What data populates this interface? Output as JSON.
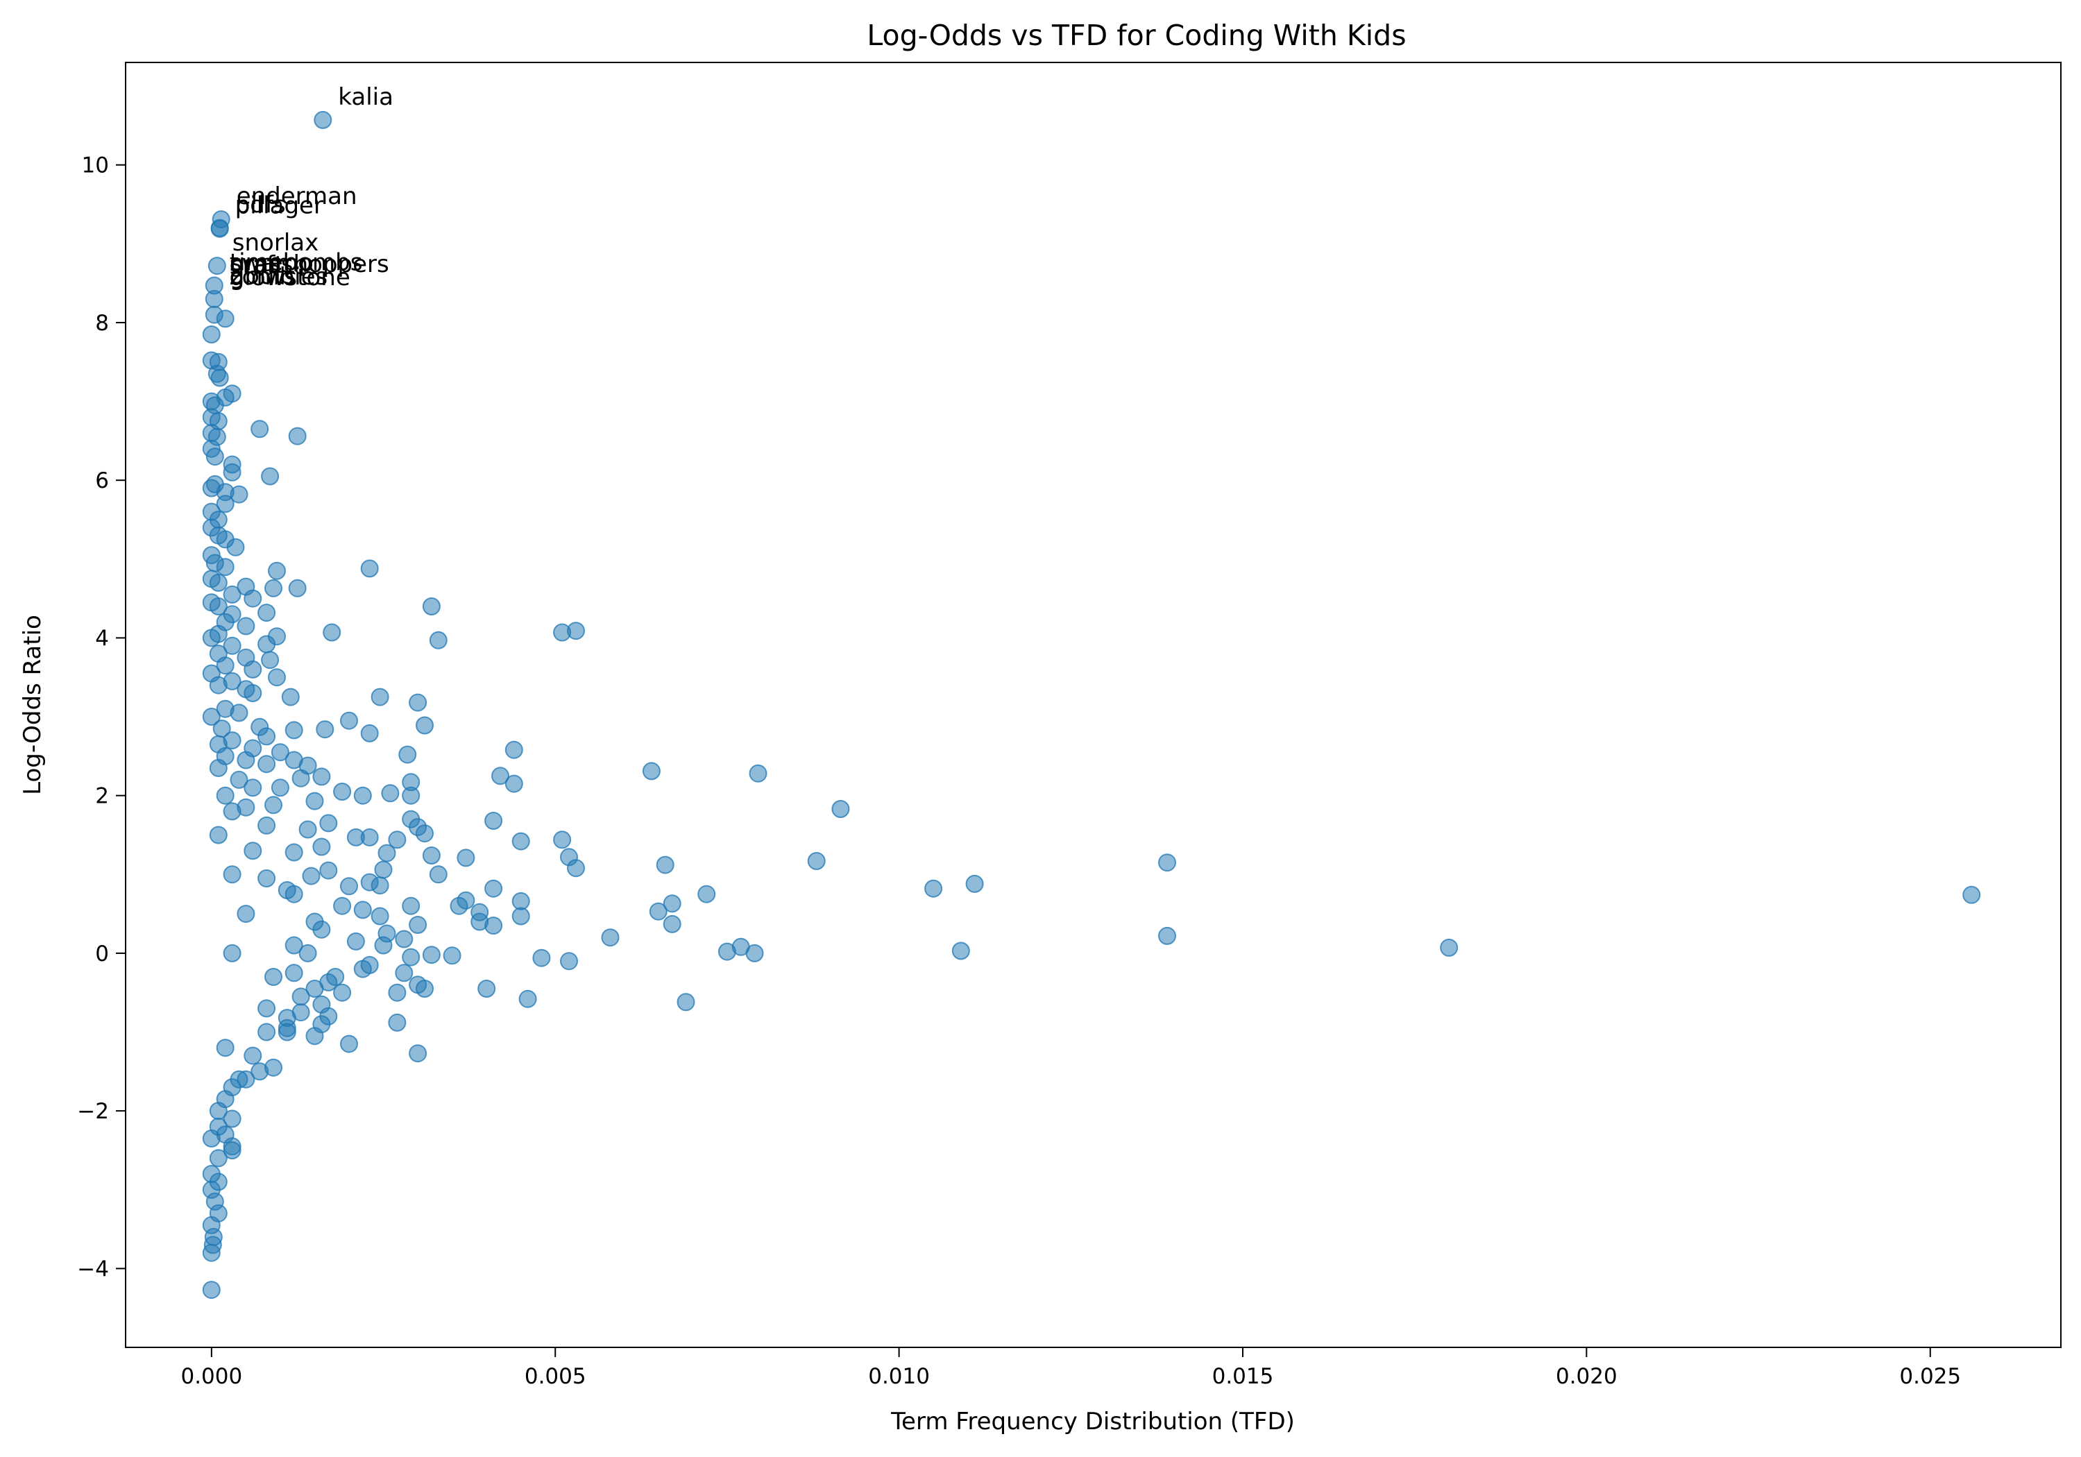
{
  "chart_data": {
    "type": "scatter",
    "title": "Log-Odds vs TFD for Coding With Kids",
    "xlabel": "Term Frequency Distribution (TFD)",
    "ylabel": "Log-Odds Ratio",
    "xlim": [
      -0.00125,
      0.0269
    ],
    "ylim": [
      -5.0,
      11.3
    ],
    "xticks": [
      0.0,
      0.005,
      0.01,
      0.015,
      0.02,
      0.025
    ],
    "xtick_labels": [
      "0.000",
      "0.005",
      "0.010",
      "0.015",
      "0.020",
      "0.025"
    ],
    "yticks": [
      -4,
      -2,
      0,
      2,
      4,
      6,
      8,
      10
    ],
    "ytick_labels": [
      "−4",
      "−2",
      "0",
      "2",
      "4",
      "6",
      "8",
      "10"
    ],
    "grid": false,
    "marker_color": "#1f77b4",
    "marker_alpha": 0.5,
    "annotations": [
      {
        "text": "kalia",
        "x": 0.00162,
        "y": 10.57
      },
      {
        "text": "enderman",
        "x": 0.00014,
        "y": 9.31
      },
      {
        "text": "pdfs",
        "x": 0.00012,
        "y": 9.2
      },
      {
        "text": "pillager",
        "x": 0.00012,
        "y": 9.19
      },
      {
        "text": "snorlax",
        "x": 8e-05,
        "y": 8.72
      },
      {
        "text": "timebombs",
        "x": 4e-05,
        "y": 8.47
      },
      {
        "text": "swamp",
        "x": 4e-05,
        "y": 8.46
      },
      {
        "text": "grasshoppers",
        "x": 4e-05,
        "y": 8.45
      },
      {
        "text": "craft",
        "x": 4e-05,
        "y": 8.44
      },
      {
        "text": "gbuts",
        "x": 4e-05,
        "y": 8.3
      },
      {
        "text": "zombies",
        "x": 4e-05,
        "y": 8.29
      },
      {
        "text": "glowstone",
        "x": 4e-05,
        "y": 8.28
      }
    ],
    "points": [
      [
        0.00162,
        10.57
      ],
      [
        0.00014,
        9.31
      ],
      [
        0.00012,
        9.2
      ],
      [
        0.00012,
        9.19
      ],
      [
        8e-05,
        8.72
      ],
      [
        4e-05,
        8.47
      ],
      [
        4e-05,
        8.3
      ],
      [
        4e-05,
        8.1
      ],
      [
        0.0002,
        8.05
      ],
      [
        0.0,
        7.85
      ],
      [
        0.0,
        7.52
      ],
      [
        0.0001,
        7.5
      ],
      [
        8e-05,
        7.35
      ],
      [
        0.00012,
        7.3
      ],
      [
        0.0003,
        7.1
      ],
      [
        0.0002,
        7.05
      ],
      [
        0.0,
        7.0
      ],
      [
        5e-05,
        6.95
      ],
      [
        0.0,
        6.8
      ],
      [
        0.0001,
        6.75
      ],
      [
        0.0,
        6.6
      ],
      [
        8e-05,
        6.55
      ],
      [
        0.0007,
        6.65
      ],
      [
        0.00125,
        6.56
      ],
      [
        0.0,
        6.4
      ],
      [
        5e-05,
        6.3
      ],
      [
        0.0003,
        6.2
      ],
      [
        0.0003,
        6.1
      ],
      [
        0.00085,
        6.05
      ],
      [
        0.0,
        5.9
      ],
      [
        5e-05,
        5.95
      ],
      [
        0.0002,
        5.85
      ],
      [
        0.0004,
        5.82
      ],
      [
        0.0002,
        5.7
      ],
      [
        0.0,
        5.6
      ],
      [
        0.0001,
        5.5
      ],
      [
        0.0,
        5.4
      ],
      [
        0.0001,
        5.3
      ],
      [
        0.0002,
        5.25
      ],
      [
        0.00035,
        5.15
      ],
      [
        0.0,
        5.05
      ],
      [
        5e-05,
        4.95
      ],
      [
        0.0002,
        4.9
      ],
      [
        0.00095,
        4.85
      ],
      [
        0.0023,
        4.88
      ],
      [
        0.0,
        4.75
      ],
      [
        0.0001,
        4.7
      ],
      [
        0.0005,
        4.65
      ],
      [
        0.0009,
        4.63
      ],
      [
        0.00125,
        4.63
      ],
      [
        0.0003,
        4.55
      ],
      [
        0.0006,
        4.5
      ],
      [
        0.0,
        4.45
      ],
      [
        0.0001,
        4.4
      ],
      [
        0.0032,
        4.4
      ],
      [
        0.0003,
        4.3
      ],
      [
        0.0008,
        4.32
      ],
      [
        0.0002,
        4.2
      ],
      [
        0.0005,
        4.15
      ],
      [
        0.0051,
        4.07
      ],
      [
        0.0053,
        4.09
      ],
      [
        0.00175,
        4.07
      ],
      [
        0.0001,
        4.05
      ],
      [
        0.0,
        4.0
      ],
      [
        0.00095,
        4.02
      ],
      [
        0.0033,
        3.97
      ],
      [
        0.0003,
        3.9
      ],
      [
        0.0008,
        3.92
      ],
      [
        0.0001,
        3.8
      ],
      [
        0.0005,
        3.75
      ],
      [
        0.00085,
        3.72
      ],
      [
        0.0002,
        3.65
      ],
      [
        0.0006,
        3.6
      ],
      [
        0.0,
        3.55
      ],
      [
        0.00095,
        3.5
      ],
      [
        0.0003,
        3.45
      ],
      [
        0.0001,
        3.4
      ],
      [
        0.0005,
        3.35
      ],
      [
        0.0006,
        3.3
      ],
      [
        0.00115,
        3.25
      ],
      [
        0.00245,
        3.25
      ],
      [
        0.003,
        3.18
      ],
      [
        0.0002,
        3.1
      ],
      [
        0.0004,
        3.05
      ],
      [
        0.0,
        3.0
      ],
      [
        0.002,
        2.95
      ],
      [
        0.0031,
        2.89
      ],
      [
        0.0007,
        2.87
      ],
      [
        0.00015,
        2.85
      ],
      [
        0.0012,
        2.83
      ],
      [
        0.00165,
        2.84
      ],
      [
        0.0023,
        2.79
      ],
      [
        0.0008,
        2.75
      ],
      [
        0.0003,
        2.7
      ],
      [
        0.0001,
        2.65
      ],
      [
        0.0044,
        2.58
      ],
      [
        0.0006,
        2.6
      ],
      [
        0.001,
        2.55
      ],
      [
        0.0002,
        2.5
      ],
      [
        0.00285,
        2.52
      ],
      [
        0.0005,
        2.45
      ],
      [
        0.0012,
        2.45
      ],
      [
        0.0008,
        2.4
      ],
      [
        0.0014,
        2.38
      ],
      [
        0.0001,
        2.35
      ],
      [
        0.0064,
        2.31
      ],
      [
        0.00795,
        2.28
      ],
      [
        0.0042,
        2.25
      ],
      [
        0.0016,
        2.24
      ],
      [
        0.0013,
        2.22
      ],
      [
        0.0004,
        2.2
      ],
      [
        0.0029,
        2.17
      ],
      [
        0.0044,
        2.15
      ],
      [
        0.0006,
        2.1
      ],
      [
        0.001,
        2.1
      ],
      [
        0.0019,
        2.05
      ],
      [
        0.0026,
        2.03
      ],
      [
        0.0022,
        2.0
      ],
      [
        0.0002,
        2.0
      ],
      [
        0.0029,
        2.0
      ],
      [
        0.0015,
        1.93
      ],
      [
        0.0009,
        1.88
      ],
      [
        0.0005,
        1.85
      ],
      [
        0.00915,
        1.83
      ],
      [
        0.0003,
        1.8
      ],
      [
        0.0029,
        1.7
      ],
      [
        0.0041,
        1.68
      ],
      [
        0.0017,
        1.65
      ],
      [
        0.0008,
        1.62
      ],
      [
        0.003,
        1.6
      ],
      [
        0.0014,
        1.57
      ],
      [
        0.0031,
        1.52
      ],
      [
        0.0001,
        1.5
      ],
      [
        0.0021,
        1.47
      ],
      [
        0.0023,
        1.47
      ],
      [
        0.0051,
        1.44
      ],
      [
        0.0045,
        1.42
      ],
      [
        0.0027,
        1.44
      ],
      [
        0.0016,
        1.35
      ],
      [
        0.0006,
        1.3
      ],
      [
        0.0012,
        1.28
      ],
      [
        0.00255,
        1.27
      ],
      [
        0.0032,
        1.24
      ],
      [
        0.0052,
        1.22
      ],
      [
        0.0037,
        1.21
      ],
      [
        0.0088,
        1.17
      ],
      [
        0.0139,
        1.15
      ],
      [
        0.0066,
        1.12
      ],
      [
        0.0053,
        1.08
      ],
      [
        0.0017,
        1.05
      ],
      [
        0.0025,
        1.06
      ],
      [
        0.0003,
        1.0
      ],
      [
        0.0033,
        1.0
      ],
      [
        0.00145,
        0.98
      ],
      [
        0.0008,
        0.95
      ],
      [
        0.0023,
        0.9
      ],
      [
        0.0111,
        0.88
      ],
      [
        0.002,
        0.85
      ],
      [
        0.0105,
        0.82
      ],
      [
        0.0041,
        0.82
      ],
      [
        0.00245,
        0.86
      ],
      [
        0.0011,
        0.8
      ],
      [
        0.0072,
        0.75
      ],
      [
        0.0256,
        0.74
      ],
      [
        0.0012,
        0.75
      ],
      [
        0.0037,
        0.67
      ],
      [
        0.0045,
        0.66
      ],
      [
        0.0029,
        0.6
      ],
      [
        0.0067,
        0.63
      ],
      [
        0.0036,
        0.6
      ],
      [
        0.0019,
        0.6
      ],
      [
        0.0065,
        0.53
      ],
      [
        0.0039,
        0.52
      ],
      [
        0.0022,
        0.55
      ],
      [
        0.0045,
        0.47
      ],
      [
        0.00245,
        0.47
      ],
      [
        0.0005,
        0.5
      ],
      [
        0.0015,
        0.4
      ],
      [
        0.0039,
        0.4
      ],
      [
        0.0041,
        0.35
      ],
      [
        0.0067,
        0.37
      ],
      [
        0.003,
        0.36
      ],
      [
        0.0016,
        0.3
      ],
      [
        0.00255,
        0.25
      ],
      [
        0.0139,
        0.22
      ],
      [
        0.0058,
        0.2
      ],
      [
        0.0028,
        0.18
      ],
      [
        0.0021,
        0.15
      ],
      [
        0.0012,
        0.1
      ],
      [
        0.0025,
        0.1
      ],
      [
        0.0077,
        0.08
      ],
      [
        0.018,
        0.07
      ],
      [
        0.0109,
        0.03
      ],
      [
        0.0075,
        0.02
      ],
      [
        0.0079,
        0.0
      ],
      [
        0.0003,
        0.0
      ],
      [
        0.0014,
        0.0
      ],
      [
        0.0032,
        -0.02
      ],
      [
        0.0035,
        -0.03
      ],
      [
        0.0029,
        -0.05
      ],
      [
        0.0048,
        -0.06
      ],
      [
        0.0052,
        -0.1
      ],
      [
        0.0023,
        -0.15
      ],
      [
        0.0022,
        -0.2
      ],
      [
        0.0028,
        -0.25
      ],
      [
        0.0012,
        -0.25
      ],
      [
        0.0018,
        -0.3
      ],
      [
        0.0009,
        -0.3
      ],
      [
        0.0017,
        -0.37
      ],
      [
        0.003,
        -0.4
      ],
      [
        0.0031,
        -0.45
      ],
      [
        0.0015,
        -0.45
      ],
      [
        0.004,
        -0.45
      ],
      [
        0.0027,
        -0.5
      ],
      [
        0.0019,
        -0.5
      ],
      [
        0.0013,
        -0.55
      ],
      [
        0.0046,
        -0.58
      ],
      [
        0.0069,
        -0.62
      ],
      [
        0.0016,
        -0.65
      ],
      [
        0.0008,
        -0.7
      ],
      [
        0.0013,
        -0.75
      ],
      [
        0.0017,
        -0.8
      ],
      [
        0.0011,
        -0.82
      ],
      [
        0.0027,
        -0.88
      ],
      [
        0.0016,
        -0.9
      ],
      [
        0.0011,
        -0.95
      ],
      [
        0.0008,
        -1.0
      ],
      [
        0.0015,
        -1.05
      ],
      [
        0.0011,
        -1.0
      ],
      [
        0.002,
        -1.15
      ],
      [
        0.0002,
        -1.2
      ],
      [
        0.0006,
        -1.3
      ],
      [
        0.003,
        -1.27
      ],
      [
        0.0009,
        -1.45
      ],
      [
        0.0007,
        -1.5
      ],
      [
        0.0005,
        -1.6
      ],
      [
        0.0003,
        -1.7
      ],
      [
        0.0004,
        -1.6
      ],
      [
        0.0002,
        -1.85
      ],
      [
        0.0001,
        -2.0
      ],
      [
        0.0003,
        -2.1
      ],
      [
        0.0001,
        -2.2
      ],
      [
        0.0002,
        -2.3
      ],
      [
        0.0,
        -2.35
      ],
      [
        0.0003,
        -2.45
      ],
      [
        0.0003,
        -2.5
      ],
      [
        0.0001,
        -2.6
      ],
      [
        0.0,
        -2.8
      ],
      [
        0.0001,
        -2.9
      ],
      [
        0.0,
        -3.0
      ],
      [
        5e-05,
        -3.15
      ],
      [
        0.0001,
        -3.3
      ],
      [
        0.0,
        -3.45
      ],
      [
        3e-05,
        -3.6
      ],
      [
        2e-05,
        -3.7
      ],
      [
        0.0,
        -3.8
      ],
      [
        0.0,
        -4.27
      ]
    ]
  }
}
